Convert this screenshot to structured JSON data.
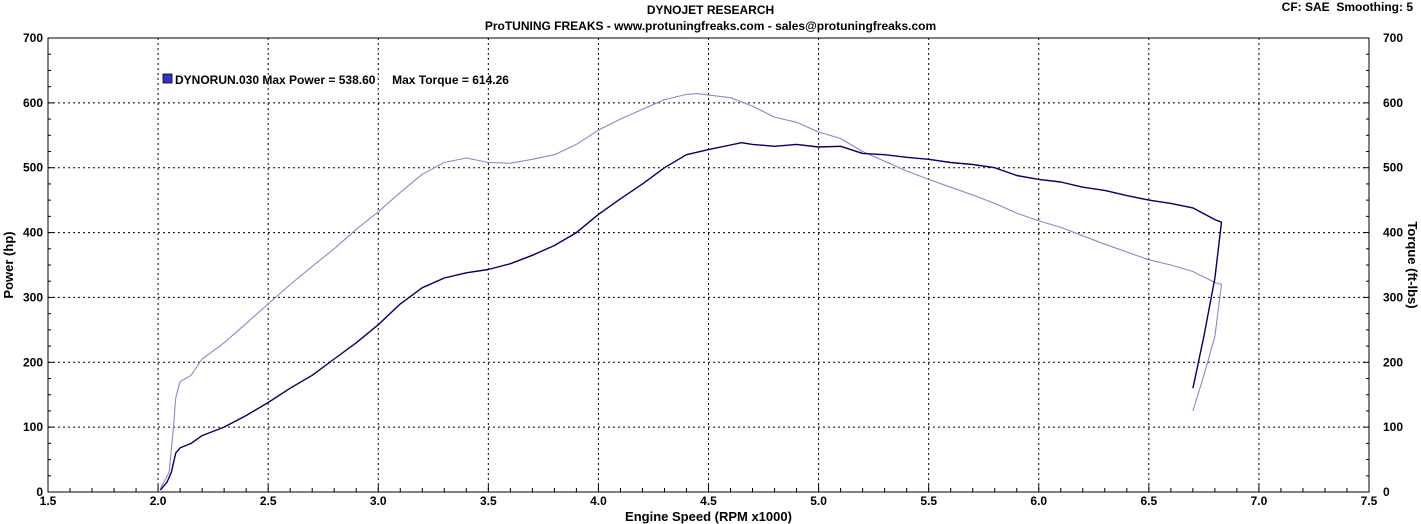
{
  "header": {
    "title": "DYNOJET RESEARCH",
    "subtitle": "ProTUNING FREAKS - www.protuningfreaks.com - sales@protuningfreaks.com",
    "correction_info": "CF: SAE  Smoothing: 5"
  },
  "chart_data": {
    "type": "line",
    "xlabel": "Engine Speed (RPM x1000)",
    "ylabel_left": "Power (hp)",
    "ylabel_right": "Torque (ft-lbs)",
    "xlim": [
      1.5,
      7.5
    ],
    "ylim": [
      0,
      700
    ],
    "x_ticks": [
      "1.5",
      "2.0",
      "2.5",
      "3.0",
      "3.5",
      "4.0",
      "4.5",
      "5.0",
      "5.5",
      "6.0",
      "6.5",
      "7.0",
      "7.5"
    ],
    "y_ticks": [
      "0",
      "100",
      "200",
      "300",
      "400",
      "500",
      "600",
      "700"
    ],
    "grid": true,
    "legend_position": "top-left",
    "legend": {
      "run_name": "DYNORUN.030",
      "text": "DYNORUN.030 Max Power = 538.60     Max Torque = 614.26"
    },
    "colors": {
      "power": "#000066",
      "torque": "#8888cc",
      "legend_swatch": "#3333cc",
      "grid": "#000000"
    },
    "series": [
      {
        "name": "Power",
        "x": [
          2.01,
          2.04,
          2.06,
          2.08,
          2.1,
          2.15,
          2.2,
          2.3,
          2.4,
          2.5,
          2.6,
          2.7,
          2.8,
          2.9,
          3.0,
          3.1,
          3.2,
          3.3,
          3.4,
          3.5,
          3.6,
          3.7,
          3.8,
          3.9,
          4.0,
          4.1,
          4.2,
          4.3,
          4.4,
          4.5,
          4.6,
          4.65,
          4.7,
          4.8,
          4.9,
          5.0,
          5.1,
          5.2,
          5.3,
          5.4,
          5.5,
          5.6,
          5.7,
          5.8,
          5.9,
          6.0,
          6.1,
          6.2,
          6.3,
          6.4,
          6.5,
          6.6,
          6.7,
          6.8,
          6.83,
          6.8,
          6.75,
          6.7
        ],
        "values": [
          3,
          15,
          30,
          60,
          68,
          75,
          87,
          100,
          118,
          138,
          160,
          180,
          205,
          230,
          258,
          290,
          315,
          330,
          338,
          343,
          352,
          365,
          380,
          400,
          428,
          452,
          475,
          500,
          520,
          528,
          535,
          538.6,
          536,
          533,
          536,
          532,
          533,
          522,
          520,
          516,
          513,
          508,
          505,
          500,
          488,
          482,
          478,
          470,
          465,
          457,
          450,
          445,
          438,
          420,
          416,
          330,
          240,
          160
        ]
      },
      {
        "name": "Torque",
        "x": [
          2.01,
          2.05,
          2.07,
          2.08,
          2.1,
          2.15,
          2.2,
          2.3,
          2.4,
          2.5,
          2.6,
          2.7,
          2.8,
          2.9,
          3.0,
          3.1,
          3.2,
          3.3,
          3.4,
          3.5,
          3.6,
          3.7,
          3.8,
          3.9,
          4.0,
          4.1,
          4.2,
          4.3,
          4.4,
          4.45,
          4.5,
          4.6,
          4.7,
          4.8,
          4.9,
          5.0,
          5.1,
          5.2,
          5.3,
          5.4,
          5.5,
          5.6,
          5.7,
          5.8,
          5.9,
          6.0,
          6.1,
          6.2,
          6.3,
          6.4,
          6.5,
          6.6,
          6.7,
          6.8,
          6.83,
          6.8,
          6.75,
          6.7
        ],
        "values": [
          5,
          30,
          100,
          145,
          170,
          180,
          205,
          230,
          260,
          290,
          320,
          348,
          375,
          405,
          432,
          462,
          490,
          508,
          515,
          508,
          507,
          513,
          520,
          536,
          558,
          575,
          590,
          605,
          613,
          614.26,
          612,
          608,
          595,
          578,
          570,
          555,
          545,
          525,
          510,
          495,
          482,
          470,
          458,
          445,
          430,
          418,
          408,
          395,
          382,
          370,
          358,
          350,
          340,
          323,
          320,
          240,
          180,
          125
        ]
      }
    ]
  }
}
